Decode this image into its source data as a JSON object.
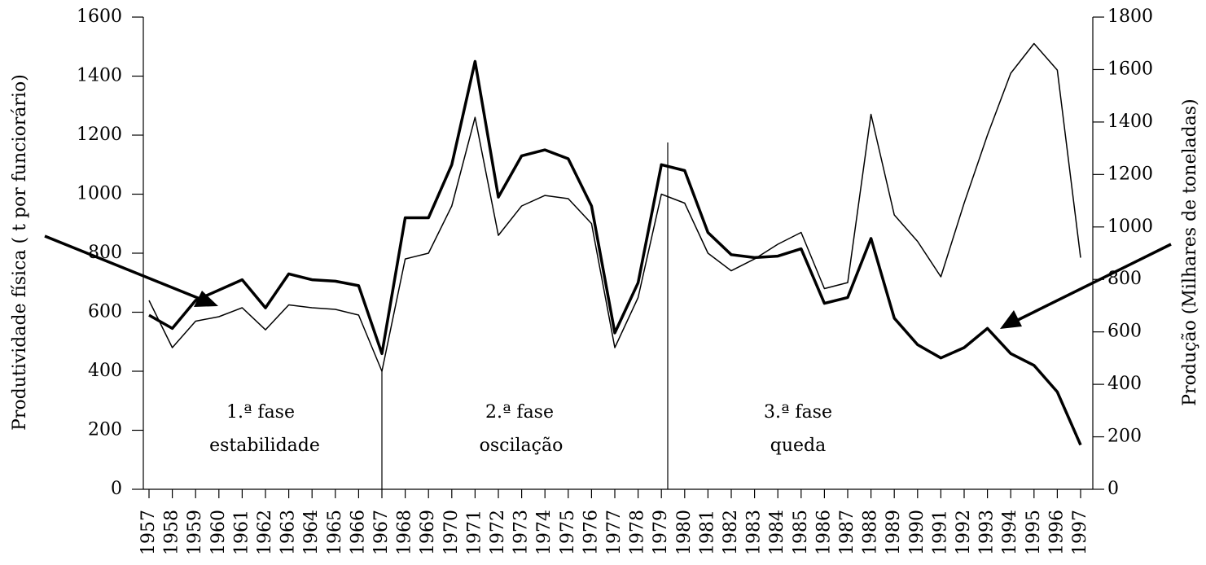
{
  "chart_data": {
    "type": "line",
    "y_label": "Produtividade física ( t por funciorário)",
    "y2_label": "Produção (Milhares de toneladas)",
    "categories": [
      "1957",
      "1958",
      "1959",
      "1960",
      "1961",
      "1962",
      "1963",
      "1964",
      "1965",
      "1966",
      "1967",
      "1968",
      "1969",
      "1970",
      "1971",
      "1972",
      "1973",
      "1974",
      "1975",
      "1976",
      "1977",
      "1978",
      "1979",
      "1980",
      "1981",
      "1982",
      "1983",
      "1984",
      "1985",
      "1986",
      "1987",
      "1988",
      "1989",
      "1990",
      "1991",
      "1992",
      "1993",
      "1994",
      "1995",
      "1996",
      "1997"
    ],
    "series": [
      {
        "color": "#000000",
        "width": 3.5,
        "values": [
          590,
          545,
          640,
          675,
          710,
          615,
          730,
          710,
          705,
          690,
          460,
          920,
          920,
          1100,
          1450,
          990,
          1130,
          1150,
          1120,
          960,
          530,
          700,
          1100,
          1080,
          870,
          795,
          785,
          790,
          815,
          630,
          650,
          850,
          580,
          490,
          445,
          480,
          545,
          460,
          420,
          330,
          150
        ]
      },
      {
        "color": "#000000",
        "width": 1.5,
        "axis": "y2",
        "values": [
          720,
          540,
          641,
          658,
          692,
          608,
          703,
          692,
          686,
          664,
          450,
          878,
          900,
          1080,
          1418,
          968,
          1080,
          1120,
          1108,
          1013,
          540,
          731,
          1125,
          1091,
          900,
          833,
          878,
          934,
          979,
          765,
          788,
          1429,
          1046,
          945,
          810,
          1091,
          1350,
          1586,
          1699,
          1598,
          883
        ]
      }
    ],
    "ylim": [
      0,
      1600
    ],
    "yticks": [
      0,
      200,
      400,
      600,
      800,
      1000,
      1200,
      1400,
      1600
    ],
    "y2lim": [
      0,
      1800
    ],
    "y2ticks": [
      0,
      200,
      400,
      600,
      800,
      1000,
      1200,
      1400,
      1600,
      1800
    ],
    "annotations": [
      "1.ª fase",
      "estabilidade",
      "2.ª fase",
      "oscilação",
      "3.ª fase",
      "queda"
    ]
  }
}
